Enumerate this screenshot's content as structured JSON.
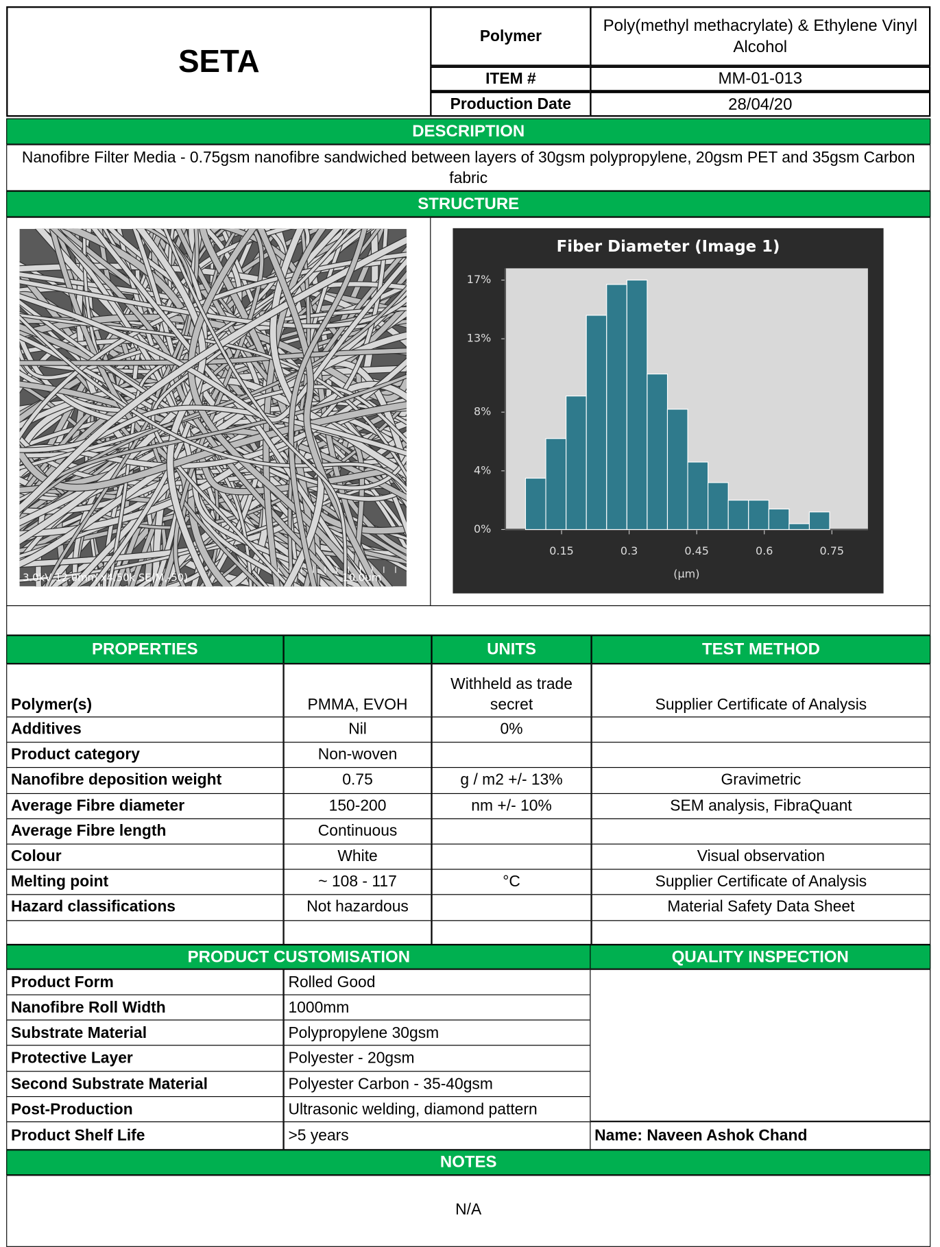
{
  "header": {
    "company": "SETA",
    "polymer_label": "Polymer",
    "polymer": "Poly(methyl methacrylate) & Ethylene Vinyl Alcohol",
    "item_label": "ITEM #",
    "item": "MM-01-013",
    "date_label": "Production Date",
    "date": "28/04/20"
  },
  "description": {
    "title": "DESCRIPTION",
    "text": "Nanofibre Filter Media - 0.75gsm nanofibre sandwiched between layers of 30gsm polypropylene, 20gsm PET and 35gsm Carbon fabric"
  },
  "structure": {
    "title": "STRUCTURE",
    "sem_caption": "3.0kV 12.0mm x4.50k SE(M,-50)",
    "sem_scale": "10.0um"
  },
  "chart_data": {
    "type": "histogram",
    "title": "Fiber Diameter (Image 1)",
    "x_label": "(µm)",
    "bins": [
      0.07,
      0.115,
      0.16,
      0.205,
      0.25,
      0.295,
      0.34,
      0.385,
      0.43,
      0.475,
      0.52,
      0.565,
      0.61,
      0.655,
      0.7,
      0.745
    ],
    "values": [
      3.5,
      6.2,
      9.1,
      14.6,
      16.7,
      17.0,
      10.6,
      8.2,
      4.6,
      3.2,
      2.0,
      2.0,
      1.4,
      0.4,
      1.2
    ],
    "color": "#2f7a8c",
    "xlim": [
      0.025,
      0.83
    ],
    "xticks": [
      0.15,
      0.3,
      0.45,
      0.6,
      0.75
    ],
    "ylim": [
      0,
      17.8
    ],
    "yticks": [
      {
        "value": 0,
        "label": "0%"
      },
      {
        "value": 4,
        "label": "4%"
      },
      {
        "value": 8,
        "label": "8%"
      },
      {
        "value": 13,
        "label": "13%"
      },
      {
        "value": 17,
        "label": "17%"
      }
    ]
  },
  "properties": {
    "headers": {
      "properties": "PROPERTIES",
      "units": "UNITS",
      "test_method": "TEST METHOD"
    },
    "rows": [
      [
        "Polymer(s)",
        "PMMA, EVOH",
        "Withheld as trade secret",
        "Supplier Certificate of Analysis"
      ],
      [
        "Additives",
        "Nil",
        "0%",
        null
      ],
      [
        "Product category",
        "Non-woven",
        null,
        null
      ],
      [
        "Nanofibre deposition weight",
        "0.75",
        "g / m2 +/- 13%",
        "Gravimetric"
      ],
      [
        "Average Fibre diameter",
        "150-200",
        "nm +/- 10%",
        "SEM analysis, FibraQuant"
      ],
      [
        "Average Fibre length",
        "Continuous",
        null,
        null
      ],
      [
        "Colour",
        "White",
        null,
        "Visual observation"
      ],
      [
        "Melting point",
        "~ 108 - 117",
        "°C",
        "Supplier Certificate of Analysis"
      ],
      [
        "Hazard classifications",
        "Not hazardous",
        null,
        "Material Safety Data Sheet"
      ]
    ]
  },
  "customisation": {
    "title": "PRODUCT CUSTOMISATION",
    "rows": [
      [
        "Product Form",
        "Rolled Good"
      ],
      [
        "Nanofibre Roll Width",
        "1000mm"
      ],
      [
        "Substrate Material",
        "Polypropylene 30gsm"
      ],
      [
        "Protective Layer",
        "Polyester - 20gsm"
      ],
      [
        "Second Substrate Material",
        "Polyester Carbon - 35-40gsm"
      ],
      [
        "Post-Production",
        "Ultrasonic welding, diamond pattern"
      ],
      [
        "Product Shelf Life",
        ">5 years"
      ]
    ]
  },
  "quality": {
    "title": "QUALITY INSPECTION",
    "name": "Name: Naveen Ashok Chand"
  },
  "notes": {
    "title": "NOTES",
    "text": "N/A"
  }
}
